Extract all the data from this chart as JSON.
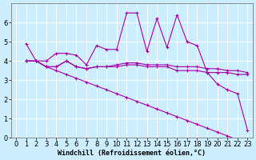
{
  "background_color": "#cceeff",
  "grid_color": "#ffffff",
  "line_color": "#aa00aa",
  "line_width": 0.8,
  "marker": "+",
  "marker_size": 3,
  "marker_edge_width": 0.8,
  "xlabel": "Windchill (Refroidissement éolien,°C)",
  "xlabel_fontsize": 6,
  "xlim": [
    -0.5,
    23.5
  ],
  "ylim": [
    0,
    7
  ],
  "xticks": [
    0,
    1,
    2,
    3,
    4,
    5,
    6,
    7,
    8,
    9,
    10,
    11,
    12,
    13,
    14,
    15,
    16,
    17,
    18,
    19,
    20,
    21,
    22,
    23
  ],
  "yticks": [
    0,
    1,
    2,
    3,
    4,
    5,
    6
  ],
  "tick_fontsize": 6,
  "series": [
    [
      4.9,
      4.0,
      4.0,
      4.4,
      4.4,
      4.3,
      3.8,
      4.8,
      4.6,
      4.6,
      6.5,
      6.5,
      4.5,
      6.2,
      4.7,
      6.4,
      5.0,
      4.8,
      3.4,
      2.8,
      2.5,
      2.3,
      0.4
    ],
    [
      4.0,
      4.0,
      3.7,
      3.7,
      4.0,
      3.7,
      3.6,
      3.7,
      3.7,
      3.7,
      3.8,
      3.8,
      3.7,
      3.7,
      3.7,
      3.5,
      3.5,
      3.5,
      3.4,
      3.4,
      3.4,
      3.3,
      3.3
    ],
    [
      4.0,
      4.0,
      3.7,
      3.7,
      4.0,
      3.7,
      3.6,
      3.7,
      3.7,
      3.8,
      3.9,
      3.9,
      3.8,
      3.8,
      3.8,
      3.7,
      3.7,
      3.7,
      3.6,
      3.6,
      3.5,
      3.5,
      3.4
    ],
    [
      4.0,
      4.0,
      3.7,
      3.5,
      3.3,
      3.1,
      2.9,
      2.7,
      2.5,
      2.3,
      2.1,
      1.9,
      1.7,
      1.5,
      1.3,
      1.1,
      0.9,
      0.7,
      0.5,
      0.3,
      0.1,
      -0.1,
      -0.3
    ]
  ],
  "x_values": [
    1,
    2,
    3,
    4,
    5,
    6,
    7,
    8,
    9,
    10,
    11,
    12,
    13,
    14,
    15,
    16,
    17,
    18,
    19,
    20,
    21,
    22,
    23
  ]
}
